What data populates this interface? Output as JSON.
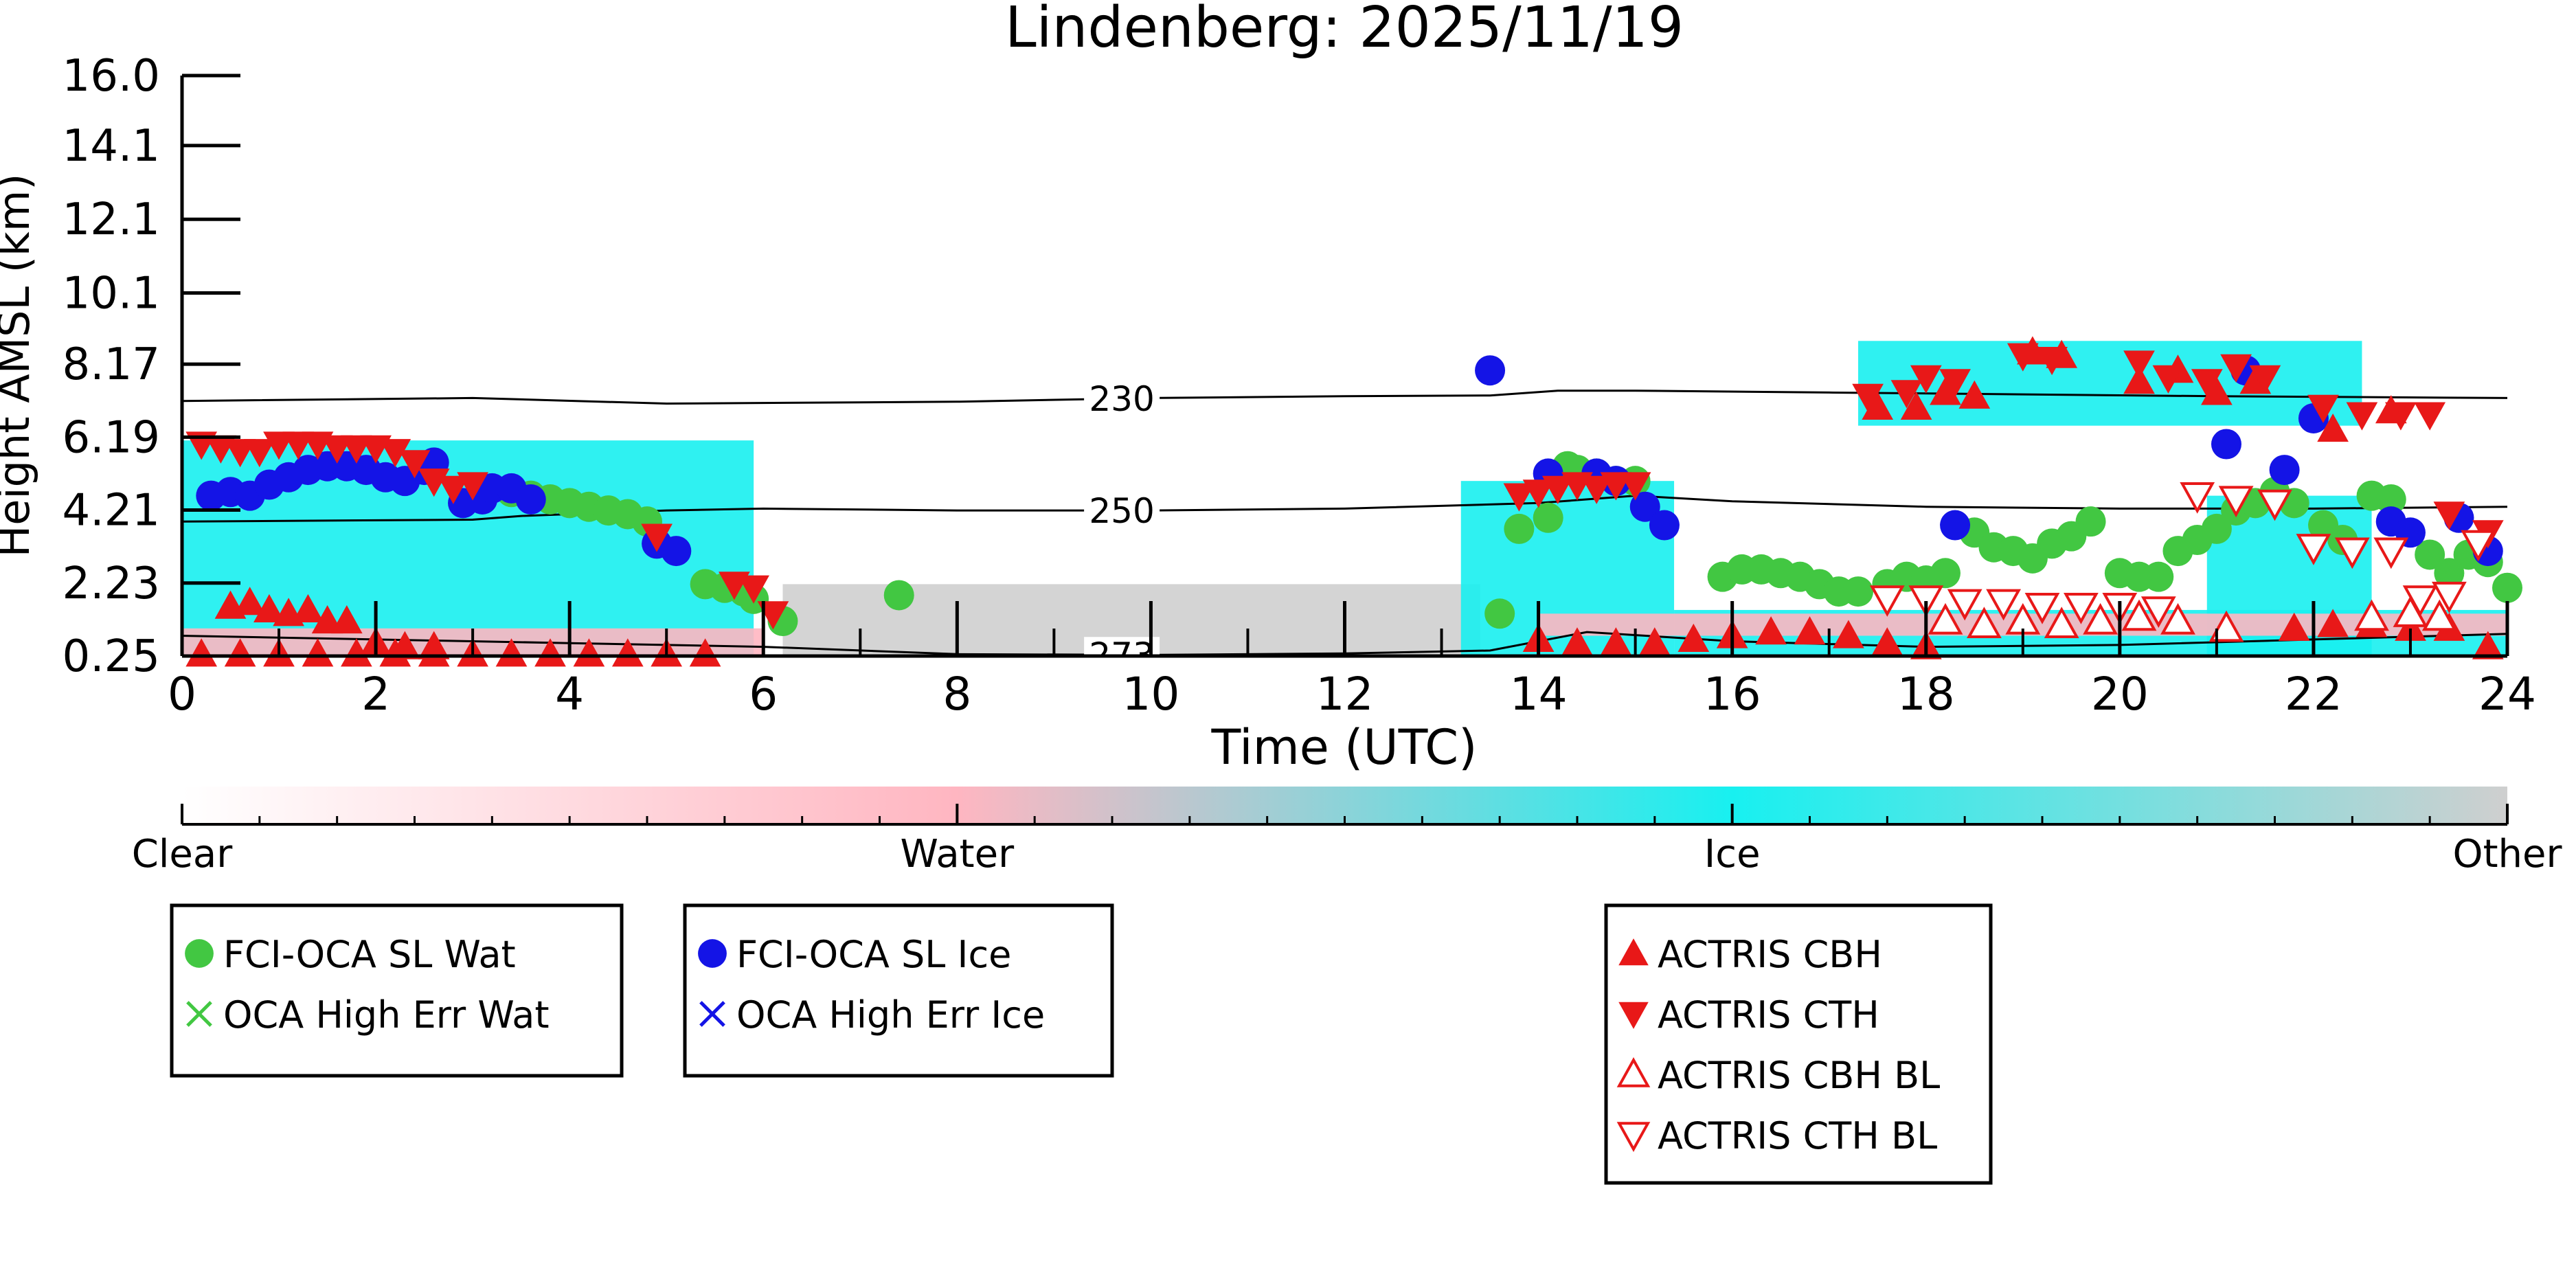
{
  "chart_data": {
    "type": "scatter",
    "title": "Lindenberg: 2025/11/19",
    "xlabel": "Time (UTC)",
    "ylabel": "Height AMSL (km)",
    "xlim": [
      0,
      24
    ],
    "ylim": [
      0.25,
      16.0
    ],
    "x_ticks": [
      "0",
      "2",
      "4",
      "6",
      "8",
      "10",
      "12",
      "14",
      "16",
      "18",
      "20",
      "22",
      "24"
    ],
    "y_ticks": [
      "0.25",
      "2.23",
      "4.21",
      "6.19",
      "8.17",
      "10.1",
      "12.1",
      "14.1",
      "16.0"
    ],
    "grid": false,
    "colors": {
      "water": "#42c742",
      "ice": "#1414e6",
      "actris": "#e81818",
      "cloud_ice": "#18f0f0",
      "cloud_other": "#cfcfcf",
      "cloud_water": "#ffb6c1"
    },
    "colorbar": {
      "labels": [
        "Clear",
        "Water",
        "Ice",
        "Other"
      ]
    },
    "isotherms": [
      {
        "label": "230",
        "label_x": 9.7,
        "points": [
          [
            0,
            7.17
          ],
          [
            3,
            7.25
          ],
          [
            5,
            7.1
          ],
          [
            8,
            7.15
          ],
          [
            10,
            7.25
          ],
          [
            12,
            7.3
          ],
          [
            13.5,
            7.32
          ],
          [
            14.2,
            7.45
          ],
          [
            15,
            7.45
          ],
          [
            17,
            7.4
          ],
          [
            19,
            7.35
          ],
          [
            21,
            7.3
          ],
          [
            24,
            7.25
          ]
        ]
      },
      {
        "label": "250",
        "label_x": 9.7,
        "points": [
          [
            0,
            3.9
          ],
          [
            3,
            3.95
          ],
          [
            3.5,
            4.05
          ],
          [
            5,
            4.2
          ],
          [
            6,
            4.25
          ],
          [
            8,
            4.2
          ],
          [
            10,
            4.2
          ],
          [
            12,
            4.25
          ],
          [
            14,
            4.4
          ],
          [
            15,
            4.6
          ],
          [
            16,
            4.45
          ],
          [
            18,
            4.3
          ],
          [
            20,
            4.25
          ],
          [
            22,
            4.25
          ],
          [
            24,
            4.3
          ]
        ]
      },
      {
        "label": "273",
        "label_x": 9.7,
        "points": [
          [
            0,
            0.8
          ],
          [
            2,
            0.7
          ],
          [
            4,
            0.6
          ],
          [
            6,
            0.5
          ],
          [
            8,
            0.3
          ],
          [
            10,
            0.28
          ],
          [
            12,
            0.32
          ],
          [
            13.5,
            0.4
          ],
          [
            14.5,
            0.9
          ],
          [
            16,
            0.65
          ],
          [
            18,
            0.5
          ],
          [
            20,
            0.55
          ],
          [
            22,
            0.7
          ],
          [
            24,
            0.85
          ]
        ]
      }
    ],
    "cloud_mask_regions": [
      {
        "type": "Other",
        "x0": 6.2,
        "x1": 13.4,
        "y0": 0.25,
        "y1": 2.2
      },
      {
        "type": "Ice",
        "x0": 0.0,
        "x1": 5.9,
        "y0": 0.25,
        "y1": 6.1
      },
      {
        "type": "Ice",
        "x0": 13.2,
        "x1": 15.4,
        "y0": 0.25,
        "y1": 5.0
      },
      {
        "type": "Ice",
        "x0": 15.4,
        "x1": 24.0,
        "y0": 0.25,
        "y1": 1.5
      },
      {
        "type": "Ice",
        "x0": 20.9,
        "x1": 22.6,
        "y0": 0.25,
        "y1": 4.6
      },
      {
        "type": "Ice",
        "x0": 17.3,
        "x1": 22.5,
        "y0": 6.5,
        "y1": 8.8
      },
      {
        "type": "Water",
        "x0": 0.0,
        "x1": 6.0,
        "y0": 0.25,
        "y1": 1.0
      },
      {
        "type": "Water",
        "x0": 14.0,
        "x1": 24.0,
        "y0": 0.8,
        "y1": 1.4
      }
    ],
    "series": [
      {
        "name": "FCI-OCA SL Wat",
        "marker": "circle",
        "color": "#42c742",
        "points": [
          [
            3.4,
            4.7
          ],
          [
            3.6,
            4.6
          ],
          [
            3.8,
            4.5
          ],
          [
            4.0,
            4.4
          ],
          [
            4.2,
            4.3
          ],
          [
            4.4,
            4.2
          ],
          [
            4.6,
            4.1
          ],
          [
            4.8,
            3.9
          ],
          [
            5.4,
            2.2
          ],
          [
            5.6,
            2.1
          ],
          [
            5.8,
            2.0
          ],
          [
            5.9,
            1.8
          ],
          [
            6.2,
            1.2
          ],
          [
            7.4,
            1.9
          ],
          [
            13.6,
            1.4
          ],
          [
            13.8,
            3.7
          ],
          [
            14.1,
            4.0
          ],
          [
            14.3,
            5.4
          ],
          [
            14.4,
            5.3
          ],
          [
            14.6,
            5.2
          ],
          [
            14.8,
            5.0
          ],
          [
            15.0,
            5.0
          ],
          [
            15.9,
            2.4
          ],
          [
            16.1,
            2.6
          ],
          [
            16.3,
            2.6
          ],
          [
            16.5,
            2.5
          ],
          [
            16.7,
            2.4
          ],
          [
            16.9,
            2.2
          ],
          [
            17.1,
            2.0
          ],
          [
            17.3,
            2.0
          ],
          [
            17.6,
            2.2
          ],
          [
            17.8,
            2.4
          ],
          [
            18.0,
            2.3
          ],
          [
            18.2,
            2.5
          ],
          [
            18.5,
            3.6
          ],
          [
            18.7,
            3.2
          ],
          [
            18.9,
            3.1
          ],
          [
            19.1,
            2.9
          ],
          [
            19.3,
            3.3
          ],
          [
            19.5,
            3.5
          ],
          [
            19.7,
            3.9
          ],
          [
            20.0,
            2.5
          ],
          [
            20.2,
            2.4
          ],
          [
            20.4,
            2.4
          ],
          [
            20.6,
            3.1
          ],
          [
            20.8,
            3.4
          ],
          [
            21.0,
            3.7
          ],
          [
            21.2,
            4.2
          ],
          [
            21.4,
            4.4
          ],
          [
            21.6,
            4.7
          ],
          [
            21.8,
            4.4
          ],
          [
            22.1,
            3.8
          ],
          [
            22.3,
            3.4
          ],
          [
            22.6,
            4.6
          ],
          [
            22.8,
            4.5
          ],
          [
            23.2,
            3.0
          ],
          [
            23.4,
            2.5
          ],
          [
            23.6,
            3.0
          ],
          [
            23.8,
            2.8
          ],
          [
            24.0,
            2.1
          ]
        ]
      },
      {
        "name": "OCA High Err Wat",
        "marker": "x",
        "color": "#42c742",
        "points": []
      },
      {
        "name": "FCI-OCA SL Ice",
        "marker": "circle",
        "color": "#1414e6",
        "points": [
          [
            0.3,
            4.6
          ],
          [
            0.5,
            4.7
          ],
          [
            0.7,
            4.6
          ],
          [
            0.9,
            4.9
          ],
          [
            1.1,
            5.1
          ],
          [
            1.3,
            5.3
          ],
          [
            1.5,
            5.4
          ],
          [
            1.7,
            5.4
          ],
          [
            1.9,
            5.3
          ],
          [
            2.1,
            5.1
          ],
          [
            2.3,
            5.0
          ],
          [
            2.5,
            5.3
          ],
          [
            2.6,
            5.5
          ],
          [
            2.9,
            4.4
          ],
          [
            3.1,
            4.5
          ],
          [
            3.2,
            4.8
          ],
          [
            3.4,
            4.8
          ],
          [
            3.6,
            4.5
          ],
          [
            4.9,
            3.3
          ],
          [
            5.1,
            3.1
          ],
          [
            13.5,
            8.0
          ],
          [
            14.1,
            5.2
          ],
          [
            14.6,
            5.2
          ],
          [
            14.8,
            5.0
          ],
          [
            15.1,
            4.3
          ],
          [
            15.3,
            3.8
          ],
          [
            18.3,
            3.8
          ],
          [
            21.1,
            6.0
          ],
          [
            21.3,
            8.0
          ],
          [
            21.7,
            5.3
          ],
          [
            22.0,
            6.7
          ],
          [
            22.8,
            3.9
          ],
          [
            23.0,
            3.6
          ],
          [
            23.5,
            4.0
          ],
          [
            23.8,
            3.1
          ]
        ]
      },
      {
        "name": "OCA High Err Ice",
        "marker": "x",
        "color": "#1414e6",
        "points": []
      },
      {
        "name": "ACTRIS CBH",
        "marker": "triangle-up",
        "color": "#e81818",
        "points": [
          [
            0.5,
            1.6
          ],
          [
            0.7,
            1.7
          ],
          [
            0.9,
            1.5
          ],
          [
            1.1,
            1.4
          ],
          [
            1.3,
            1.5
          ],
          [
            1.5,
            1.2
          ],
          [
            1.7,
            1.2
          ],
          [
            2.0,
            0.6
          ],
          [
            2.3,
            0.5
          ],
          [
            2.6,
            0.5
          ],
          [
            0.2,
            0.3
          ],
          [
            0.6,
            0.3
          ],
          [
            1.0,
            0.3
          ],
          [
            1.4,
            0.3
          ],
          [
            1.8,
            0.3
          ],
          [
            2.2,
            0.3
          ],
          [
            2.6,
            0.3
          ],
          [
            3.0,
            0.3
          ],
          [
            3.4,
            0.3
          ],
          [
            3.8,
            0.3
          ],
          [
            4.2,
            0.3
          ],
          [
            4.6,
            0.3
          ],
          [
            5.0,
            0.3
          ],
          [
            5.4,
            0.3
          ],
          [
            14.0,
            0.7
          ],
          [
            14.4,
            0.6
          ],
          [
            14.8,
            0.6
          ],
          [
            15.2,
            0.6
          ],
          [
            15.6,
            0.7
          ],
          [
            16.0,
            0.8
          ],
          [
            16.4,
            0.9
          ],
          [
            16.8,
            0.9
          ],
          [
            17.2,
            0.8
          ],
          [
            17.6,
            0.6
          ],
          [
            18.0,
            0.5
          ],
          [
            21.8,
            1.0
          ],
          [
            22.2,
            1.1
          ],
          [
            22.6,
            1.1
          ],
          [
            23.0,
            1.0
          ],
          [
            23.4,
            1.0
          ],
          [
            23.8,
            0.5
          ],
          [
            17.5,
            7.0
          ],
          [
            17.9,
            7.0
          ],
          [
            18.2,
            7.4
          ],
          [
            18.5,
            7.3
          ],
          [
            19.1,
            8.5
          ],
          [
            19.4,
            8.4
          ],
          [
            20.2,
            7.7
          ],
          [
            20.6,
            8.0
          ],
          [
            21.0,
            7.4
          ],
          [
            21.4,
            7.7
          ],
          [
            22.2,
            6.4
          ],
          [
            22.8,
            6.9
          ]
        ]
      },
      {
        "name": "ACTRIS CTH",
        "marker": "triangle-down",
        "color": "#e81818",
        "points": [
          [
            0.2,
            6.0
          ],
          [
            0.4,
            5.9
          ],
          [
            0.6,
            5.8
          ],
          [
            0.8,
            5.8
          ],
          [
            1.0,
            6.0
          ],
          [
            1.2,
            6.0
          ],
          [
            1.4,
            6.0
          ],
          [
            1.6,
            5.9
          ],
          [
            1.8,
            5.9
          ],
          [
            2.0,
            5.9
          ],
          [
            2.2,
            5.8
          ],
          [
            2.4,
            5.5
          ],
          [
            2.6,
            5.0
          ],
          [
            2.8,
            4.8
          ],
          [
            3.0,
            4.9
          ],
          [
            4.9,
            3.5
          ],
          [
            5.7,
            2.2
          ],
          [
            5.9,
            2.1
          ],
          [
            6.1,
            1.4
          ],
          [
            13.8,
            4.6
          ],
          [
            14.0,
            4.7
          ],
          [
            14.2,
            4.8
          ],
          [
            14.4,
            4.9
          ],
          [
            14.6,
            4.8
          ],
          [
            14.8,
            4.9
          ],
          [
            15.0,
            4.9
          ],
          [
            17.4,
            7.3
          ],
          [
            17.8,
            7.4
          ],
          [
            18.0,
            7.8
          ],
          [
            18.3,
            7.7
          ],
          [
            19.0,
            8.4
          ],
          [
            19.3,
            8.3
          ],
          [
            20.2,
            8.2
          ],
          [
            20.5,
            7.8
          ],
          [
            20.9,
            7.7
          ],
          [
            21.2,
            8.1
          ],
          [
            21.5,
            7.8
          ],
          [
            22.1,
            7.0
          ],
          [
            22.5,
            6.8
          ],
          [
            22.9,
            6.8
          ],
          [
            23.2,
            6.8
          ],
          [
            23.4,
            4.1
          ],
          [
            23.8,
            3.6
          ]
        ]
      },
      {
        "name": "ACTRIS CBH BL",
        "marker": "triangle-up-open",
        "color": "#e81818",
        "points": [
          [
            18.2,
            1.2
          ],
          [
            18.6,
            1.1
          ],
          [
            19.0,
            1.2
          ],
          [
            19.4,
            1.1
          ],
          [
            19.8,
            1.2
          ],
          [
            20.2,
            1.3
          ],
          [
            20.6,
            1.2
          ],
          [
            21.1,
            1.0
          ],
          [
            22.6,
            1.3
          ],
          [
            23.0,
            1.4
          ],
          [
            23.3,
            1.3
          ]
        ]
      },
      {
        "name": "ACTRIS CTH BL",
        "marker": "triangle-down-open",
        "color": "#e81818",
        "points": [
          [
            17.6,
            1.8
          ],
          [
            18.0,
            1.8
          ],
          [
            18.4,
            1.7
          ],
          [
            18.8,
            1.7
          ],
          [
            19.2,
            1.6
          ],
          [
            19.6,
            1.6
          ],
          [
            20.0,
            1.6
          ],
          [
            20.4,
            1.5
          ],
          [
            20.8,
            4.6
          ],
          [
            21.2,
            4.5
          ],
          [
            21.6,
            4.4
          ],
          [
            22.0,
            3.2
          ],
          [
            22.4,
            3.1
          ],
          [
            22.8,
            3.1
          ],
          [
            23.1,
            1.8
          ],
          [
            23.4,
            1.9
          ],
          [
            23.7,
            3.3
          ]
        ]
      }
    ],
    "legend_groups": [
      [
        "FCI-OCA SL Wat",
        "OCA High Err Wat"
      ],
      [
        "FCI-OCA SL Ice",
        "OCA High Err Ice"
      ],
      [
        "ACTRIS CBH",
        "ACTRIS CTH",
        "ACTRIS CBH BL",
        "ACTRIS CTH BL"
      ]
    ]
  }
}
